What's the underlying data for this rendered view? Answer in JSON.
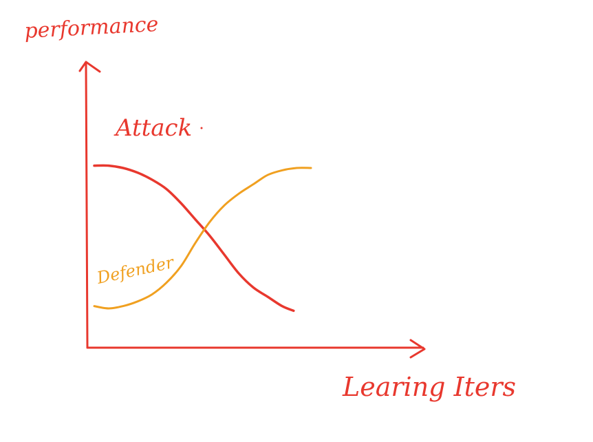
{
  "chart_data": {
    "type": "line",
    "title": "",
    "xlabel": "Learing Iters",
    "ylabel": "performance",
    "xlim": [
      0,
      10
    ],
    "ylim": [
      0,
      10
    ],
    "grid": false,
    "legend": "inline-labels",
    "series": [
      {
        "name": "Attack",
        "color": "#e8382e",
        "x": [
          0.0,
          0.5,
          1.0,
          1.5,
          2.0,
          2.5,
          3.0,
          3.5,
          4.0,
          4.5,
          5.0,
          5.5,
          6.0,
          6.5,
          6.9
        ],
        "y": [
          7.6,
          7.6,
          7.5,
          7.3,
          7.0,
          6.6,
          6.0,
          5.3,
          4.6,
          3.8,
          3.0,
          2.4,
          2.0,
          1.6,
          1.4
        ]
      },
      {
        "name": "Defender",
        "color": "#f0a020",
        "x": [
          0.0,
          0.5,
          1.0,
          1.5,
          2.0,
          2.5,
          3.0,
          3.5,
          4.0,
          4.5,
          5.0,
          5.5,
          6.0,
          6.5,
          7.0,
          7.5
        ],
        "y": [
          1.6,
          1.5,
          1.6,
          1.8,
          2.1,
          2.6,
          3.3,
          4.3,
          5.2,
          5.9,
          6.4,
          6.8,
          7.2,
          7.4,
          7.5,
          7.5
        ]
      }
    ]
  },
  "colors": {
    "axis": "#e8382e",
    "attack": "#e8382e",
    "defender": "#f0a020"
  }
}
